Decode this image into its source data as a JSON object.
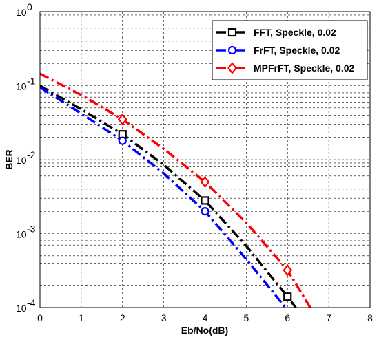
{
  "chart_data": {
    "type": "line",
    "title": "",
    "xlabel": "Eb/No(dB)",
    "ylabel": "BER",
    "xlim": [
      0,
      8
    ],
    "ylim": [
      0.0001,
      1
    ],
    "yscale": "log",
    "grid": true,
    "legend_position": "top-right",
    "x_ticks": [
      "0",
      "1",
      "2",
      "3",
      "4",
      "5",
      "6",
      "7",
      "8"
    ],
    "y_ticks": [
      {
        "base": "10",
        "exp": "0"
      },
      {
        "base": "10",
        "exp": "-1"
      },
      {
        "base": "10",
        "exp": "-2"
      },
      {
        "base": "10",
        "exp": "-3"
      },
      {
        "base": "10",
        "exp": "-4"
      }
    ],
    "series": [
      {
        "name": "FFT, Speckle, 0.02",
        "color": "#000000",
        "dash": "dashdot",
        "marker": "square",
        "x": [
          0,
          1,
          2,
          3,
          4,
          5,
          6,
          6.2
        ],
        "y": [
          0.1,
          0.048,
          0.022,
          0.0085,
          0.0028,
          0.00068,
          0.00014,
          0.0001
        ],
        "marker_x": [
          2,
          4,
          6
        ],
        "marker_y": [
          0.022,
          0.0028,
          0.00014
        ]
      },
      {
        "name": "FrFT, Speckle, 0.02",
        "color": "#0000ff",
        "dash": "dashdot",
        "marker": "circle",
        "x": [
          0,
          1,
          2,
          3,
          4,
          5,
          5.95
        ],
        "y": [
          0.095,
          0.042,
          0.018,
          0.0065,
          0.002,
          0.00045,
          0.0001
        ],
        "marker_x": [
          2,
          4
        ],
        "marker_y": [
          0.018,
          0.002
        ]
      },
      {
        "name": "MPFrFT, Speckle, 0.02",
        "color": "#ff0000",
        "dash": "dashdot",
        "marker": "diamond",
        "x": [
          0,
          1,
          2,
          3,
          4,
          5,
          6,
          6.55
        ],
        "y": [
          0.145,
          0.075,
          0.035,
          0.014,
          0.005,
          0.0014,
          0.00032,
          0.0001
        ],
        "marker_x": [
          2,
          4,
          6
        ],
        "marker_y": [
          0.035,
          0.005,
          0.00032
        ]
      }
    ]
  }
}
